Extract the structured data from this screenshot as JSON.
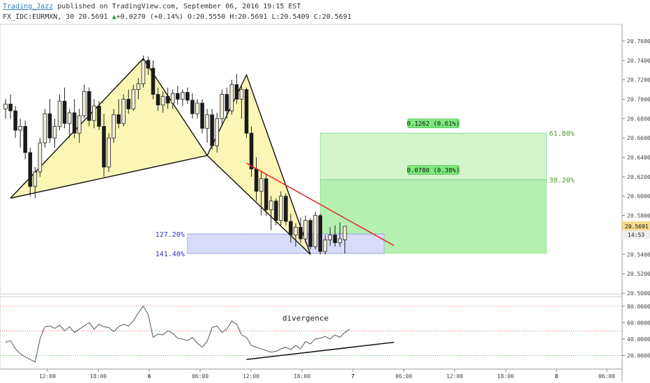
{
  "header": {
    "author": "Trading_Jazz",
    "published_text": "published on TradingView.com, September 06, 2016 19:15 EST",
    "symbol": "FX_IDC:EURMXN, 30",
    "last": "20.5691",
    "change_arrow": "▲",
    "change": "+0.0270 (+0.14%)",
    "open_label": "O:",
    "open": "20.5550",
    "high_label": "H:",
    "high": "20.5691",
    "low_label": "L:",
    "low": "20.5409",
    "close_label": "C:",
    "close": "20.5691"
  },
  "colors": {
    "up_candle": "#f5f0dc",
    "down_candle": "#1a1a1a",
    "pattern_fill": "#fbf5a9",
    "target_zone": "#b6f0b0",
    "prz_zone": "#d9dcf8",
    "trendline": "#e02020",
    "fib_text_green": "#4a9a2a",
    "fib_text_blue": "#3030c0",
    "label_bg": "#7de87d",
    "last_price_bg": "#f5d98c"
  },
  "chart_data": [
    {
      "type": "candlestick",
      "title": "FX_IDC:EURMXN, 30",
      "yaxis_ticks": [
        "20.7600",
        "20.7400",
        "20.7200",
        "20.7000",
        "20.6800",
        "20.6600",
        "20.6400",
        "20.6200",
        "20.6000",
        "20.5800",
        "20.5600",
        "20.5400",
        "20.5200",
        "20.5000"
      ],
      "ylim": [
        20.5,
        20.77
      ],
      "xaxis_ticks": [
        "12:00",
        "18:00",
        "6",
        "06:00",
        "12:00",
        "18:00",
        "7",
        "06:00",
        "12:00",
        "18:00",
        "8",
        "06:00"
      ],
      "last_price_label": "20.5691",
      "countdown_label": "14:53",
      "candles": [
        {
          "o": 20.69,
          "h": 20.7,
          "l": 20.68,
          "c": 20.695
        },
        {
          "o": 20.695,
          "h": 20.705,
          "l": 20.68,
          "c": 20.688
        },
        {
          "o": 20.688,
          "h": 20.693,
          "l": 20.66,
          "c": 20.668
        },
        {
          "o": 20.668,
          "h": 20.68,
          "l": 20.65,
          "c": 20.672
        },
        {
          "o": 20.672,
          "h": 20.678,
          "l": 20.638,
          "c": 20.645
        },
        {
          "o": 20.645,
          "h": 20.65,
          "l": 20.6,
          "c": 20.61
        },
        {
          "o": 20.61,
          "h": 20.63,
          "l": 20.598,
          "c": 20.625
        },
        {
          "o": 20.625,
          "h": 20.66,
          "l": 20.62,
          "c": 20.655
        },
        {
          "o": 20.655,
          "h": 20.69,
          "l": 20.65,
          "c": 20.685
        },
        {
          "o": 20.685,
          "h": 20.7,
          "l": 20.655,
          "c": 20.66
        },
        {
          "o": 20.66,
          "h": 20.68,
          "l": 20.65,
          "c": 20.672
        },
        {
          "o": 20.672,
          "h": 20.705,
          "l": 20.668,
          "c": 20.698
        },
        {
          "o": 20.698,
          "h": 20.712,
          "l": 20.67,
          "c": 20.675
        },
        {
          "o": 20.675,
          "h": 20.69,
          "l": 20.66,
          "c": 20.686
        },
        {
          "o": 20.686,
          "h": 20.7,
          "l": 20.66,
          "c": 20.665
        },
        {
          "o": 20.665,
          "h": 20.69,
          "l": 20.655,
          "c": 20.683
        },
        {
          "o": 20.683,
          "h": 20.715,
          "l": 20.68,
          "c": 20.708
        },
        {
          "o": 20.708,
          "h": 20.712,
          "l": 20.672,
          "c": 20.678
        },
        {
          "o": 20.678,
          "h": 20.7,
          "l": 20.67,
          "c": 20.693
        },
        {
          "o": 20.693,
          "h": 20.698,
          "l": 20.668,
          "c": 20.672
        },
        {
          "o": 20.672,
          "h": 20.685,
          "l": 20.62,
          "c": 20.63
        },
        {
          "o": 20.63,
          "h": 20.665,
          "l": 20.625,
          "c": 20.66
        },
        {
          "o": 20.66,
          "h": 20.69,
          "l": 20.655,
          "c": 20.684
        },
        {
          "o": 20.684,
          "h": 20.7,
          "l": 20.67,
          "c": 20.675
        },
        {
          "o": 20.675,
          "h": 20.705,
          "l": 20.672,
          "c": 20.7
        },
        {
          "o": 20.7,
          "h": 20.71,
          "l": 20.685,
          "c": 20.69
        },
        {
          "o": 20.69,
          "h": 20.715,
          "l": 20.688,
          "c": 20.71
        },
        {
          "o": 20.71,
          "h": 20.722,
          "l": 20.7,
          "c": 20.716
        },
        {
          "o": 20.716,
          "h": 20.745,
          "l": 20.712,
          "c": 20.74
        },
        {
          "o": 20.74,
          "h": 20.744,
          "l": 20.725,
          "c": 20.732
        },
        {
          "o": 20.732,
          "h": 20.74,
          "l": 20.7,
          "c": 20.705
        },
        {
          "o": 20.705,
          "h": 20.712,
          "l": 20.688,
          "c": 20.694
        },
        {
          "o": 20.694,
          "h": 20.708,
          "l": 20.686,
          "c": 20.703
        },
        {
          "o": 20.703,
          "h": 20.712,
          "l": 20.69,
          "c": 20.696
        },
        {
          "o": 20.696,
          "h": 20.71,
          "l": 20.69,
          "c": 20.706
        },
        {
          "o": 20.706,
          "h": 20.714,
          "l": 20.695,
          "c": 20.7
        },
        {
          "o": 20.7,
          "h": 20.71,
          "l": 20.693,
          "c": 20.707
        },
        {
          "o": 20.707,
          "h": 20.712,
          "l": 20.695,
          "c": 20.699
        },
        {
          "o": 20.699,
          "h": 20.706,
          "l": 20.68,
          "c": 20.685
        },
        {
          "o": 20.685,
          "h": 20.7,
          "l": 20.68,
          "c": 20.696
        },
        {
          "o": 20.696,
          "h": 20.7,
          "l": 20.665,
          "c": 20.67
        },
        {
          "o": 20.67,
          "h": 20.69,
          "l": 20.655,
          "c": 20.684
        },
        {
          "o": 20.684,
          "h": 20.69,
          "l": 20.648,
          "c": 20.652
        },
        {
          "o": 20.652,
          "h": 20.686,
          "l": 20.645,
          "c": 20.68
        },
        {
          "o": 20.68,
          "h": 20.71,
          "l": 20.672,
          "c": 20.705
        },
        {
          "o": 20.705,
          "h": 20.712,
          "l": 20.68,
          "c": 20.688
        },
        {
          "o": 20.688,
          "h": 20.72,
          "l": 20.684,
          "c": 20.715
        },
        {
          "o": 20.715,
          "h": 20.726,
          "l": 20.695,
          "c": 20.7
        },
        {
          "o": 20.7,
          "h": 20.715,
          "l": 20.68,
          "c": 20.71
        },
        {
          "o": 20.71,
          "h": 20.712,
          "l": 20.66,
          "c": 20.665
        },
        {
          "o": 20.665,
          "h": 20.672,
          "l": 20.62,
          "c": 20.628
        },
        {
          "o": 20.628,
          "h": 20.64,
          "l": 20.595,
          "c": 20.605
        },
        {
          "o": 20.605,
          "h": 20.625,
          "l": 20.58,
          "c": 20.618
        },
        {
          "o": 20.618,
          "h": 20.622,
          "l": 20.58,
          "c": 20.586
        },
        {
          "o": 20.586,
          "h": 20.6,
          "l": 20.565,
          "c": 20.595
        },
        {
          "o": 20.595,
          "h": 20.598,
          "l": 20.57,
          "c": 20.575
        },
        {
          "o": 20.575,
          "h": 20.605,
          "l": 20.57,
          "c": 20.6
        },
        {
          "o": 20.6,
          "h": 20.603,
          "l": 20.57,
          "c": 20.574
        },
        {
          "o": 20.574,
          "h": 20.582,
          "l": 20.552,
          "c": 20.56
        },
        {
          "o": 20.56,
          "h": 20.572,
          "l": 20.548,
          "c": 20.568
        },
        {
          "o": 20.568,
          "h": 20.578,
          "l": 20.552,
          "c": 20.556
        },
        {
          "o": 20.556,
          "h": 20.58,
          "l": 20.552,
          "c": 20.575
        },
        {
          "o": 20.575,
          "h": 20.577,
          "l": 20.545,
          "c": 20.548
        },
        {
          "o": 20.548,
          "h": 20.584,
          "l": 20.545,
          "c": 20.58
        },
        {
          "o": 20.58,
          "h": 20.582,
          "l": 20.54,
          "c": 20.543
        },
        {
          "o": 20.543,
          "h": 20.56,
          "l": 20.54,
          "c": 20.555
        },
        {
          "o": 20.555,
          "h": 20.568,
          "l": 20.549,
          "c": 20.56
        },
        {
          "o": 20.56,
          "h": 20.57,
          "l": 20.548,
          "c": 20.552
        },
        {
          "o": 20.552,
          "h": 20.573,
          "l": 20.548,
          "c": 20.556
        },
        {
          "o": 20.555,
          "h": 20.569,
          "l": 20.541,
          "c": 20.569
        }
      ],
      "pattern": {
        "points": [
          [
            1,
            20.598
          ],
          [
            28,
            20.742
          ],
          [
            41,
            20.642
          ],
          [
            49,
            20.725
          ],
          [
            62,
            20.54
          ]
        ],
        "fill": "#fbf5a9"
      },
      "trendline": {
        "from": [
          49,
          20.634
        ],
        "to": [
          79,
          20.549
        ]
      },
      "target_zone": {
        "x_start": 64,
        "x_end": 110,
        "y_bottom": 20.541,
        "y_top": 20.665
      },
      "prz_zone": {
        "x_start": 37,
        "x_end": 77,
        "y_bottom": 20.541,
        "y_top": 20.561
      },
      "fib_levels": [
        {
          "label": "61.80%",
          "y": 20.665,
          "side": "right"
        },
        {
          "label": "38.20%",
          "y": 20.617,
          "side": "right"
        },
        {
          "label": "127.20%",
          "y": 20.561,
          "side": "left"
        },
        {
          "label": "141.40%",
          "y": 20.541,
          "side": "left"
        }
      ],
      "measure_labels": [
        {
          "text": "0.1262 (0.61%)",
          "y": 20.674
        },
        {
          "text": "0.0780 (0.38%)",
          "y": 20.626
        }
      ]
    },
    {
      "type": "line",
      "yaxis_ticks": [
        "80.0000",
        "60.0000",
        "40.0000",
        "20.0000"
      ],
      "ylim": [
        5,
        90
      ],
      "levels": [
        80,
        50,
        20
      ],
      "annotation": "divergence",
      "values": [
        36,
        38,
        28,
        22,
        18,
        15,
        12,
        40,
        55,
        56,
        53,
        57,
        50,
        55,
        48,
        52,
        56,
        60,
        52,
        58,
        55,
        54,
        49,
        55,
        58,
        56,
        62,
        72,
        80,
        70,
        42,
        46,
        45,
        50,
        47,
        41,
        40,
        38,
        42,
        35,
        30,
        37,
        54,
        56,
        48,
        52,
        62,
        58,
        45,
        42,
        32,
        30,
        28,
        26,
        24,
        25,
        28,
        30,
        27,
        32,
        28,
        37,
        34,
        40,
        41,
        43,
        40,
        45,
        42,
        48,
        52
      ],
      "divergence_line": {
        "from": [
          49,
          15
        ],
        "to": [
          79,
          36
        ]
      }
    }
  ]
}
